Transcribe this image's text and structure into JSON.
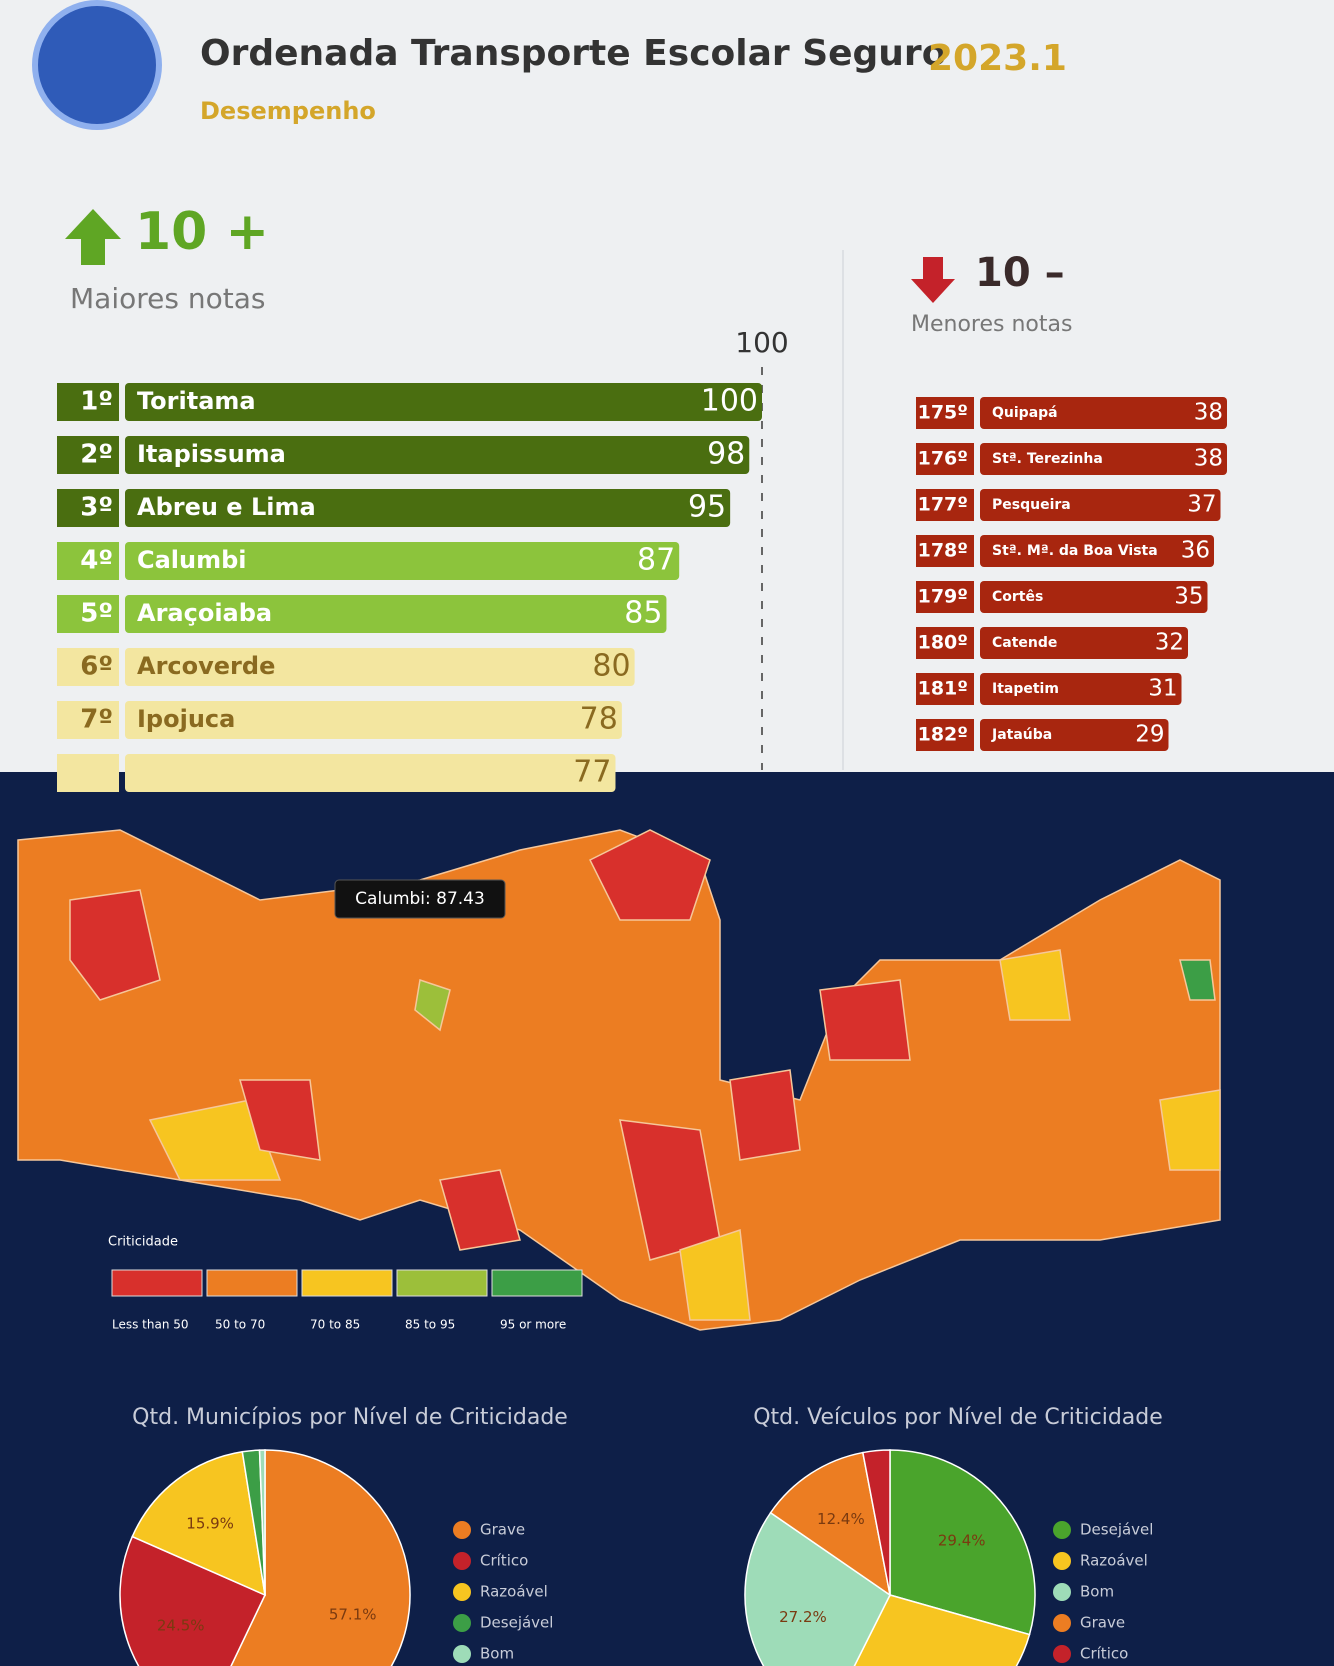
{
  "header": {
    "title": "Ordenada Transporte Escolar Seguro",
    "title_year": "2023.1",
    "subtitle": "Desempenho"
  },
  "chart_data": [
    {
      "type": "ranking",
      "title": "10 +",
      "subtitle": "Maiores notas",
      "direction": "up",
      "ranks": [
        "1º",
        "2º",
        "3º",
        "4º",
        "5º",
        "6º",
        "7º",
        null
      ],
      "categories": [
        "Toritama",
        "Itapissuma",
        "Abreu e Lima",
        "Calumbi",
        "Araçoiaba",
        "Arcoverde",
        "Ipojuca",
        null
      ],
      "values": [
        100,
        98,
        95,
        87,
        85,
        80,
        78,
        77
      ],
      "colors": [
        "#4a6e10",
        "#4a6e10",
        "#4a6e10",
        "#8cc43c",
        "#8cc43c",
        "#f3e6a0",
        "#f3e6a0",
        "#f3e6a0"
      ],
      "xlim": [
        0,
        100
      ],
      "xticks": [
        100
      ]
    },
    {
      "type": "ranking",
      "title": "10 –",
      "subtitle": "Menores notas",
      "direction": "down",
      "ranks": [
        "175º",
        "176º",
        "177º",
        "178º",
        "179º",
        "180º",
        "181º",
        "182º"
      ],
      "categories": [
        "Quipapá",
        "Stª. Terezinha",
        "Pesqueira",
        "Stª. Mª. da Boa Vista",
        "Cortês",
        "Catende",
        "Itapetim",
        "Jataúba"
      ],
      "values": [
        38,
        38,
        37,
        36,
        35,
        32,
        31,
        29
      ],
      "colors": [
        "#a8260f",
        "#a8260f",
        "#a8260f",
        "#a8260f",
        "#a8260f",
        "#a8260f",
        "#a8260f",
        "#a8260f"
      ],
      "xlim": [
        0,
        40
      ]
    },
    {
      "type": "map",
      "tooltip": "Calumbi: 87.43",
      "legend_title": "Criticidade",
      "legend": [
        {
          "label": "Less than 50",
          "color": "#d8302c"
        },
        {
          "label": "50 to 70",
          "color": "#ec7d22"
        },
        {
          "label": "70 to 85",
          "color": "#f7c520"
        },
        {
          "label": "85 to 95",
          "color": "#9cbf3a"
        },
        {
          "label": "95 or more",
          "color": "#3c9e46"
        }
      ]
    },
    {
      "type": "pie",
      "title": "Qtd. Municípios por Nível de Criticidade",
      "categories": [
        "Grave",
        "Crítico",
        "Razoável",
        "Desejável",
        "Bom"
      ],
      "values": [
        57.1,
        24.5,
        15.9,
        1.9,
        0.6
      ],
      "value_labels": [
        "57.1%",
        "24.5%",
        "15.9%",
        null,
        null
      ],
      "colors": [
        "#ec7d22",
        "#c4222a",
        "#f7c520",
        "#3c9e46",
        "#9edcb8"
      ]
    },
    {
      "type": "pie",
      "title": "Qtd. Veículos por Nível de Criticidade",
      "categories": [
        "Desejável",
        "Razoável",
        "Bom",
        "Grave",
        "Crítico"
      ],
      "values": [
        29.4,
        28,
        27.2,
        12.4,
        3
      ],
      "value_labels": [
        "29.4%",
        null,
        "27.2%",
        "12.4%",
        null
      ],
      "colors": [
        "#4aa42c",
        "#f7c520",
        "#9edcb8",
        "#ec7d22",
        "#c4222a"
      ]
    }
  ]
}
